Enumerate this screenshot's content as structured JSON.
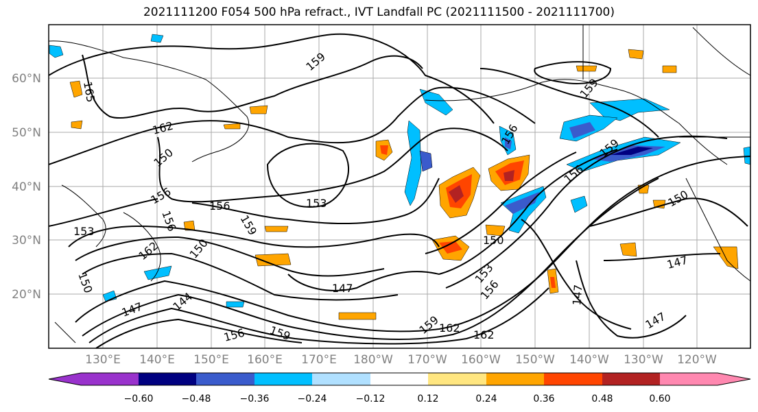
{
  "title": "2021111200 F054 500 hPa refract., IVT Landfall PC (2021111500 - 2021111700)",
  "lat_labels": [
    "60°N",
    "50°N",
    "40°N",
    "30°N",
    "20°N"
  ],
  "lon_labels": [
    "130°E",
    "140°E",
    "150°E",
    "160°E",
    "170°E",
    "180°W",
    "170°W",
    "160°W",
    "150°W",
    "140°W",
    "130°W",
    "120°W"
  ],
  "colorbar": {
    "ticks": [
      "−0.60",
      "−0.48",
      "−0.36",
      "−0.24",
      "−0.12",
      "0.12",
      "0.24",
      "0.36",
      "0.48",
      "0.60"
    ],
    "colors": [
      "#9932cc",
      "#000080",
      "#3a5bcc",
      "#00bfff",
      "#b0e0ff",
      "#ffffff",
      "#ffe680",
      "#ffa500",
      "#ff4500",
      "#b22222",
      "#ff88b0"
    ]
  },
  "contour_labels": [
    "165",
    "159",
    "162",
    "159",
    "156",
    "150",
    "156",
    "156",
    "156",
    "153",
    "153",
    "159",
    "162",
    "150",
    "150",
    "147",
    "156",
    "159",
    "153",
    "156",
    "150",
    "147",
    "147",
    "144",
    "147",
    "156",
    "159",
    "162",
    "162",
    "159",
    "147",
    "150",
    "150",
    "147",
    "156",
    "153",
    "147",
    "156",
    "159"
  ],
  "map": {
    "description_values": {
      "projection": "cylindrical",
      "lon_range": [
        "120°E",
        "115°W"
      ],
      "lat_range": [
        "10°N",
        "70°N"
      ]
    }
  }
}
